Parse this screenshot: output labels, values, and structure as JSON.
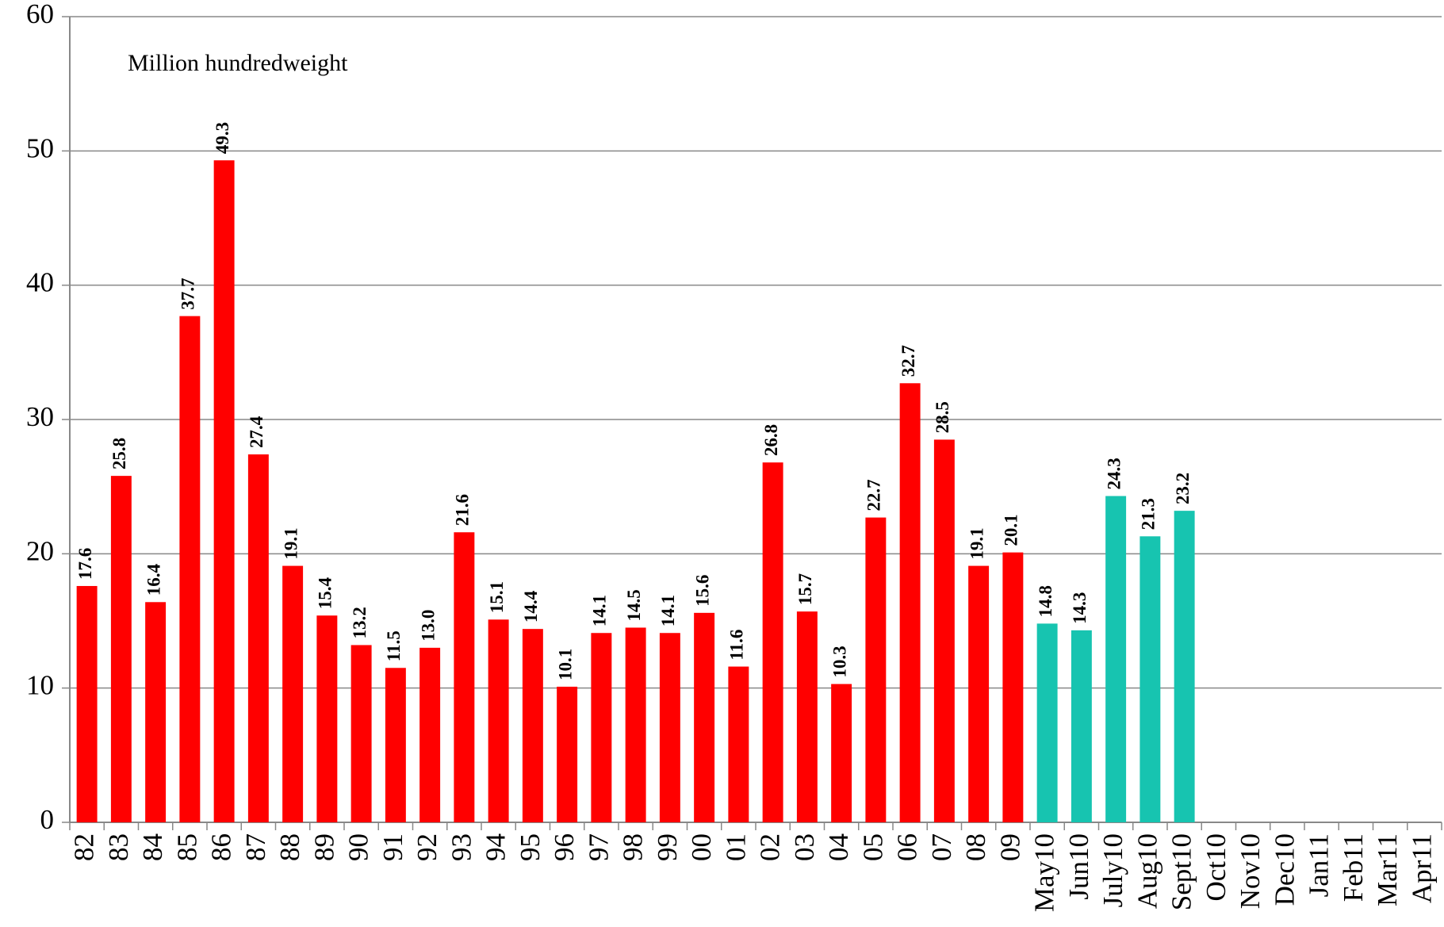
{
  "chart_data": {
    "type": "bar",
    "annotation": "Million hundredweight",
    "categories": [
      "82",
      "83",
      "84",
      "85",
      "86",
      "87",
      "88",
      "89",
      "90",
      "91",
      "92",
      "93",
      "94",
      "95",
      "96",
      "97",
      "98",
      "99",
      "00",
      "01",
      "02",
      "03",
      "04",
      "05",
      "06",
      "07",
      "08",
      "09",
      "May10",
      "Jun10",
      "July10",
      "Aug10",
      "Sept10",
      "Oct10",
      "Nov10",
      "Dec10",
      "Jan11",
      "Feb11",
      "Mar11",
      "Apr11"
    ],
    "series": [
      {
        "color": "#ff0000",
        "values": [
          17.6,
          25.8,
          16.4,
          37.7,
          49.3,
          27.4,
          19.1,
          15.4,
          13.2,
          11.5,
          13.0,
          21.6,
          15.1,
          14.4,
          10.1,
          14.1,
          14.5,
          14.1,
          15.6,
          11.6,
          26.8,
          15.7,
          10.3,
          22.7,
          32.7,
          28.5,
          19.1,
          20.1,
          null,
          null,
          null,
          null,
          null,
          null,
          null,
          null,
          null,
          null,
          null,
          null
        ],
        "value_labels": [
          "17.6",
          "25.8",
          "16.4",
          "37.7",
          "49.3",
          "27.4",
          "19.1",
          "15.4",
          "13.2",
          "11.5",
          "13.0",
          "21.6",
          "15.1",
          "14.4",
          "10.1",
          "14.1",
          "14.5",
          "14.1",
          "15.6",
          "11.6",
          "26.8",
          "15.7",
          "10.3",
          "22.7",
          "32.7",
          "28.5",
          "19.1",
          "20.1",
          null,
          null,
          null,
          null,
          null,
          null,
          null,
          null,
          null,
          null,
          null,
          null
        ]
      },
      {
        "color": "#17c4b0",
        "values": [
          null,
          null,
          null,
          null,
          null,
          null,
          null,
          null,
          null,
          null,
          null,
          null,
          null,
          null,
          null,
          null,
          null,
          null,
          null,
          null,
          null,
          null,
          null,
          null,
          null,
          null,
          null,
          null,
          14.8,
          14.3,
          24.3,
          21.3,
          23.2,
          null,
          null,
          null,
          null,
          null,
          null,
          null
        ],
        "value_labels": [
          null,
          null,
          null,
          null,
          null,
          null,
          null,
          null,
          null,
          null,
          null,
          null,
          null,
          null,
          null,
          null,
          null,
          null,
          null,
          null,
          null,
          null,
          null,
          null,
          null,
          null,
          null,
          null,
          "14.8",
          "14.3",
          "24.3",
          "21.3",
          "23.2",
          null,
          null,
          null,
          null,
          null,
          null,
          null
        ]
      }
    ],
    "ylim": [
      0,
      60
    ],
    "yticks": [
      0,
      10,
      20,
      30,
      40,
      50,
      60
    ],
    "grid": true
  }
}
